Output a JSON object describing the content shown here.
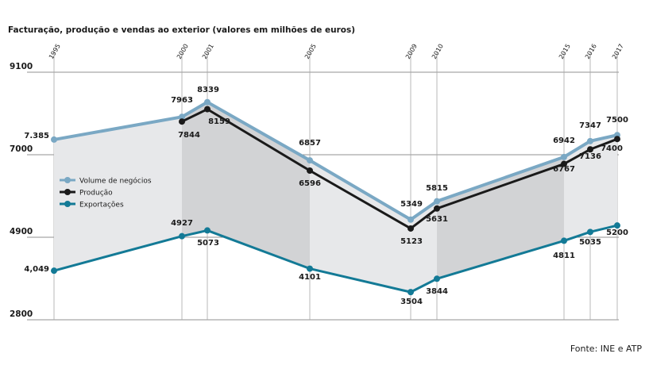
{
  "title": "Facturação, produção e vendas ao exterior (valores em milhões de euros)",
  "source": "Fonte: INE e ATP",
  "chart_data": {
    "type": "line",
    "title": "Facturação, produção e vendas ao exterior (valores em milhões de euros)",
    "x": [
      "1995",
      "2000",
      "2001",
      "2005",
      "2009",
      "2010",
      "2015",
      "2016",
      "2017"
    ],
    "ylim": [
      2800,
      9100
    ],
    "yticks": [
      "2800",
      "4900",
      "7000",
      "9100"
    ],
    "grid": true,
    "legend_position": "left",
    "series": [
      {
        "name": "Volume de negócios",
        "color": "#7aa8c4",
        "values": [
          7385,
          7963,
          8339,
          6857,
          5349,
          5815,
          6942,
          7347,
          7500
        ],
        "labels": [
          "7.385",
          "7963",
          "8339",
          "6857",
          "5349",
          "5815",
          "6942",
          "7347",
          "7500"
        ]
      },
      {
        "name": "Produção",
        "color": "#1a1a1a",
        "values": [
          null,
          7844,
          8159,
          6596,
          5123,
          5631,
          6767,
          7136,
          7400
        ],
        "labels": [
          "",
          "7844",
          "8159",
          "6596",
          "5123",
          "5631",
          "6767",
          "7136",
          "7400"
        ]
      },
      {
        "name": "Exportações",
        "color": "#137a96",
        "values": [
          4049,
          4927,
          5073,
          4101,
          3504,
          3844,
          4811,
          5035,
          5200
        ],
        "labels": [
          "4,049",
          "4927",
          "5073",
          "4101",
          "3504",
          "3844",
          "4811",
          "5035",
          "5200"
        ]
      }
    ],
    "xlabel": "",
    "ylabel": ""
  }
}
